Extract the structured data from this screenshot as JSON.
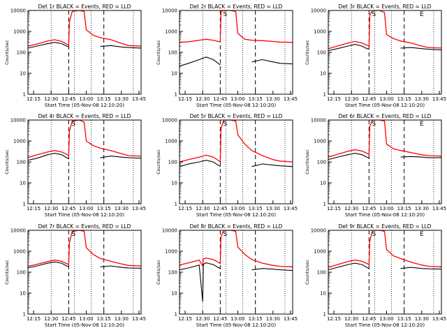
{
  "x_tick_labels": [
    "12:15",
    "12:30",
    "12:45",
    "13:00",
    "13:15",
    "13:30",
    "13:45"
  ],
  "y_tick_labels": [
    "1",
    "10",
    "100",
    "1000",
    "10000"
  ],
  "x_label": "Start Time (05-Nov-08 12:10:20)",
  "y_label": "Counts/sec",
  "colors": {
    "events": "#000000",
    "lld": "#ff0000"
  },
  "chart_data": [
    {
      "type": "line",
      "title": "Det 1r BLACK = Events, RED = LLD",
      "xlim": [
        12.17,
        13.78
      ],
      "ylim": [
        1,
        10000
      ],
      "ylog": true,
      "x": [
        12.17,
        12.3,
        12.45,
        12.55,
        12.65,
        12.72,
        12.75,
        12.76,
        12.8,
        12.9,
        12.97,
        13.0,
        13.1,
        13.2,
        13.35,
        13.5,
        13.6,
        13.78
      ],
      "events": [
        160,
        200,
        260,
        300,
        260,
        200,
        180,
        null,
        null,
        null,
        null,
        null,
        null,
        190,
        210,
        180,
        170,
        160
      ],
      "lld": [
        200,
        250,
        350,
        400,
        330,
        250,
        220,
        3000,
        9000,
        12000,
        9000,
        1200,
        650,
        500,
        400,
        270,
        210,
        200
      ],
      "dotted_x": [
        12.5,
        12.83,
        13.07,
        13.67
      ],
      "dashed_x": [
        12.75,
        13.25
      ],
      "marks": []
    },
    {
      "type": "line",
      "title": "Det 2r BLACK = Events, RED = LLD",
      "xlim": [
        12.17,
        13.78
      ],
      "ylim": [
        1,
        10000
      ],
      "ylog": true,
      "x": [
        12.17,
        12.3,
        12.45,
        12.55,
        12.65,
        12.72,
        12.75,
        12.76,
        12.8,
        12.9,
        12.97,
        13.0,
        13.1,
        13.2,
        13.35,
        13.5,
        13.6,
        13.78
      ],
      "events": [
        22,
        30,
        45,
        60,
        45,
        30,
        25,
        null,
        null,
        null,
        null,
        null,
        null,
        35,
        45,
        35,
        30,
        28
      ],
      "lld": [
        300,
        320,
        380,
        420,
        380,
        330,
        320,
        9000,
        12000,
        12000,
        9000,
        800,
        420,
        380,
        360,
        330,
        310,
        300
      ],
      "dotted_x": [
        12.5,
        12.83,
        13.07,
        13.67
      ],
      "dashed_x": [
        12.75,
        13.25
      ],
      "marks": [
        "S"
      ]
    },
    {
      "type": "line",
      "title": "Det 3r BLACK = Events, RED = LLD",
      "xlim": [
        12.17,
        13.78
      ],
      "ylim": [
        1,
        10000
      ],
      "ylog": true,
      "x": [
        12.17,
        12.3,
        12.45,
        12.55,
        12.65,
        12.72,
        12.75,
        12.76,
        12.8,
        12.9,
        12.97,
        13.0,
        13.1,
        13.2,
        13.35,
        13.5,
        13.6,
        13.78
      ],
      "events": [
        120,
        150,
        200,
        240,
        200,
        150,
        140,
        null,
        null,
        null,
        null,
        null,
        null,
        160,
        170,
        150,
        140,
        130
      ],
      "lld": [
        150,
        200,
        280,
        330,
        280,
        220,
        200,
        6000,
        12000,
        12000,
        8000,
        700,
        450,
        350,
        280,
        200,
        170,
        160
      ],
      "dotted_x": [
        12.5,
        12.83,
        13.07,
        13.67
      ],
      "dashed_x": [
        12.75,
        13.25
      ],
      "marks": [
        "S",
        "E"
      ]
    },
    {
      "type": "line",
      "title": "Det 4r BLACK = Events, RED = LLD",
      "xlim": [
        12.17,
        13.78
      ],
      "ylim": [
        1,
        10000
      ],
      "ylog": true,
      "x": [
        12.17,
        12.3,
        12.45,
        12.55,
        12.65,
        12.72,
        12.75,
        12.76,
        12.8,
        12.9,
        12.97,
        13.0,
        13.1,
        13.2,
        13.35,
        13.5,
        13.6,
        13.78
      ],
      "events": [
        120,
        150,
        220,
        260,
        220,
        160,
        140,
        null,
        null,
        null,
        null,
        null,
        null,
        160,
        190,
        170,
        160,
        150
      ],
      "lld": [
        160,
        220,
        300,
        350,
        300,
        230,
        200,
        3000,
        9000,
        11000,
        8000,
        1000,
        600,
        450,
        350,
        250,
        200,
        190
      ],
      "dotted_x": [
        12.5,
        12.83,
        13.07,
        13.67
      ],
      "dashed_x": [
        12.75,
        13.25
      ],
      "marks": [
        "S"
      ]
    },
    {
      "type": "line",
      "title": "Det 5r BLACK = Events, RED = LLD",
      "xlim": [
        12.17,
        13.78
      ],
      "ylim": [
        1,
        10000
      ],
      "ylog": true,
      "x": [
        12.17,
        12.3,
        12.45,
        12.55,
        12.65,
        12.72,
        12.75,
        12.76,
        12.8,
        12.9,
        12.97,
        13.0,
        13.1,
        13.2,
        13.35,
        13.5,
        13.6,
        13.78
      ],
      "events": [
        60,
        80,
        100,
        120,
        100,
        70,
        60,
        null,
        null,
        null,
        null,
        null,
        null,
        60,
        80,
        70,
        65,
        60
      ],
      "lld": [
        100,
        130,
        170,
        210,
        170,
        120,
        100,
        4000,
        12000,
        12000,
        9000,
        2000,
        700,
        350,
        200,
        130,
        110,
        100
      ],
      "dotted_x": [
        12.5,
        12.83,
        13.07,
        13.67
      ],
      "dashed_x": [
        12.75,
        13.25
      ],
      "marks": [
        "S"
      ]
    },
    {
      "type": "line",
      "title": "Det 6r BLACK = Events, RED = LLD",
      "xlim": [
        12.17,
        13.78
      ],
      "ylim": [
        1,
        10000
      ],
      "ylog": true,
      "x": [
        12.17,
        12.3,
        12.45,
        12.55,
        12.65,
        12.72,
        12.75,
        12.76,
        12.8,
        12.9,
        12.97,
        13.0,
        13.1,
        13.2,
        13.35,
        13.5,
        13.6,
        13.78
      ],
      "events": [
        130,
        170,
        220,
        260,
        220,
        170,
        150,
        null,
        null,
        null,
        null,
        null,
        null,
        170,
        180,
        170,
        160,
        160
      ],
      "lld": [
        170,
        230,
        320,
        380,
        330,
        260,
        230,
        5000,
        12000,
        12000,
        9000,
        700,
        420,
        350,
        280,
        220,
        200,
        190
      ],
      "dotted_x": [
        12.5,
        12.83,
        13.07,
        13.67
      ],
      "dashed_x": [
        12.75,
        13.25
      ],
      "marks": [
        "S",
        "E"
      ]
    },
    {
      "type": "line",
      "title": "Det 7r BLACK = Events, RED = LLD",
      "xlim": [
        12.17,
        13.78
      ],
      "ylim": [
        1,
        10000
      ],
      "ylog": true,
      "x": [
        12.17,
        12.3,
        12.45,
        12.55,
        12.65,
        12.72,
        12.75,
        12.76,
        12.8,
        12.9,
        12.97,
        13.0,
        13.1,
        13.2,
        13.35,
        13.5,
        13.6,
        13.78
      ],
      "events": [
        160,
        200,
        270,
        310,
        270,
        200,
        180,
        null,
        null,
        null,
        null,
        null,
        null,
        180,
        200,
        170,
        160,
        155
      ],
      "lld": [
        190,
        240,
        320,
        380,
        330,
        260,
        230,
        2500,
        9000,
        11000,
        9000,
        1500,
        700,
        450,
        330,
        250,
        210,
        200
      ],
      "dotted_x": [
        12.5,
        12.83,
        13.07,
        13.67
      ],
      "dashed_x": [
        12.75,
        13.25
      ],
      "marks": [
        "S"
      ]
    },
    {
      "type": "line",
      "title": "Det 8r BLACK = Events, RED = LLD",
      "xlim": [
        12.17,
        13.78
      ],
      "ylim": [
        1,
        10000
      ],
      "ylog": true,
      "x": [
        12.17,
        12.3,
        12.45,
        12.5,
        12.51,
        12.55,
        12.65,
        12.72,
        12.75,
        12.76,
        12.8,
        12.9,
        12.97,
        13.0,
        13.1,
        13.2,
        13.35,
        13.5,
        13.6,
        13.78
      ],
      "events": [
        130,
        160,
        220,
        4,
        240,
        280,
        230,
        170,
        150,
        null,
        null,
        null,
        null,
        null,
        null,
        130,
        150,
        140,
        130,
        120
      ],
      "lld": [
        220,
        280,
        380,
        200,
        430,
        470,
        400,
        300,
        260,
        5000,
        12000,
        12000,
        9000,
        1600,
        700,
        400,
        270,
        210,
        190,
        180
      ],
      "dotted_x": [
        12.5,
        12.83,
        13.07,
        13.67
      ],
      "dashed_x": [
        12.75,
        13.25
      ],
      "marks": [
        "S"
      ]
    },
    {
      "type": "line",
      "title": "Det 9r BLACK = Events, RED = LLD",
      "xlim": [
        12.17,
        13.78
      ],
      "ylim": [
        1,
        10000
      ],
      "ylog": true,
      "x": [
        12.17,
        12.3,
        12.45,
        12.55,
        12.65,
        12.72,
        12.75,
        12.76,
        12.8,
        12.9,
        12.97,
        13.0,
        13.1,
        13.2,
        13.35,
        13.5,
        13.6,
        13.78
      ],
      "events": [
        130,
        170,
        230,
        270,
        230,
        170,
        150,
        null,
        null,
        null,
        null,
        null,
        null,
        150,
        170,
        150,
        145,
        140
      ],
      "lld": [
        170,
        230,
        320,
        380,
        330,
        260,
        230,
        3000,
        10000,
        12000,
        9000,
        1200,
        600,
        450,
        300,
        220,
        190,
        180
      ],
      "dotted_x": [
        12.5,
        12.83,
        13.07,
        13.67
      ],
      "dashed_x": [
        12.75,
        13.25
      ],
      "marks": [
        "S",
        "E"
      ]
    }
  ]
}
